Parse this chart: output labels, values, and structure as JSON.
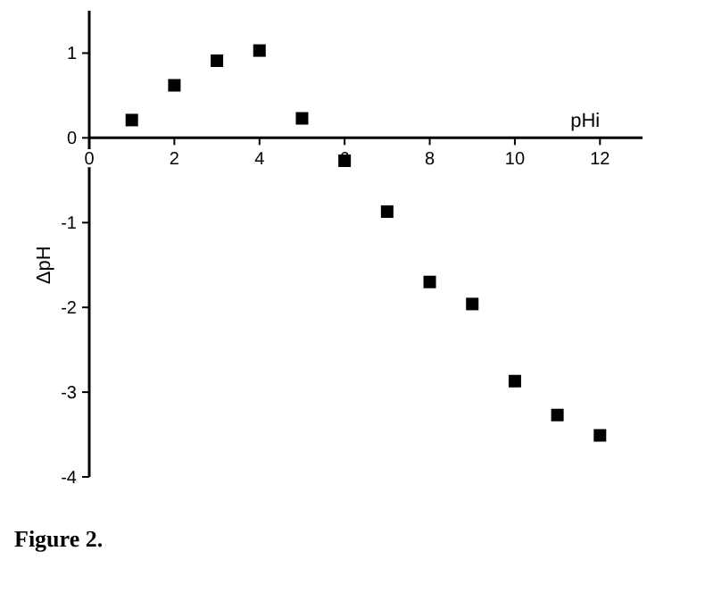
{
  "chart_data": {
    "type": "scatter",
    "xlabel": "pHi",
    "ylabel": "ΔpH",
    "annotations": [
      "Figure 2."
    ],
    "x": [
      1,
      2,
      3,
      4,
      5,
      6,
      7,
      8,
      9,
      10,
      11,
      12
    ],
    "values": [
      0.21,
      0.62,
      0.91,
      1.03,
      0.23,
      -0.27,
      -0.87,
      -1.7,
      -1.96,
      -2.87,
      -3.27,
      -3.51
    ],
    "color": "#000000",
    "marker": "square",
    "xlim": [
      0,
      13
    ],
    "xticks": [
      0,
      2,
      4,
      6,
      8,
      10,
      12
    ],
    "ylim": [
      -4,
      1.5
    ],
    "yticks": [
      -4,
      -3,
      -2,
      -1,
      0,
      1
    ],
    "grid": false
  }
}
